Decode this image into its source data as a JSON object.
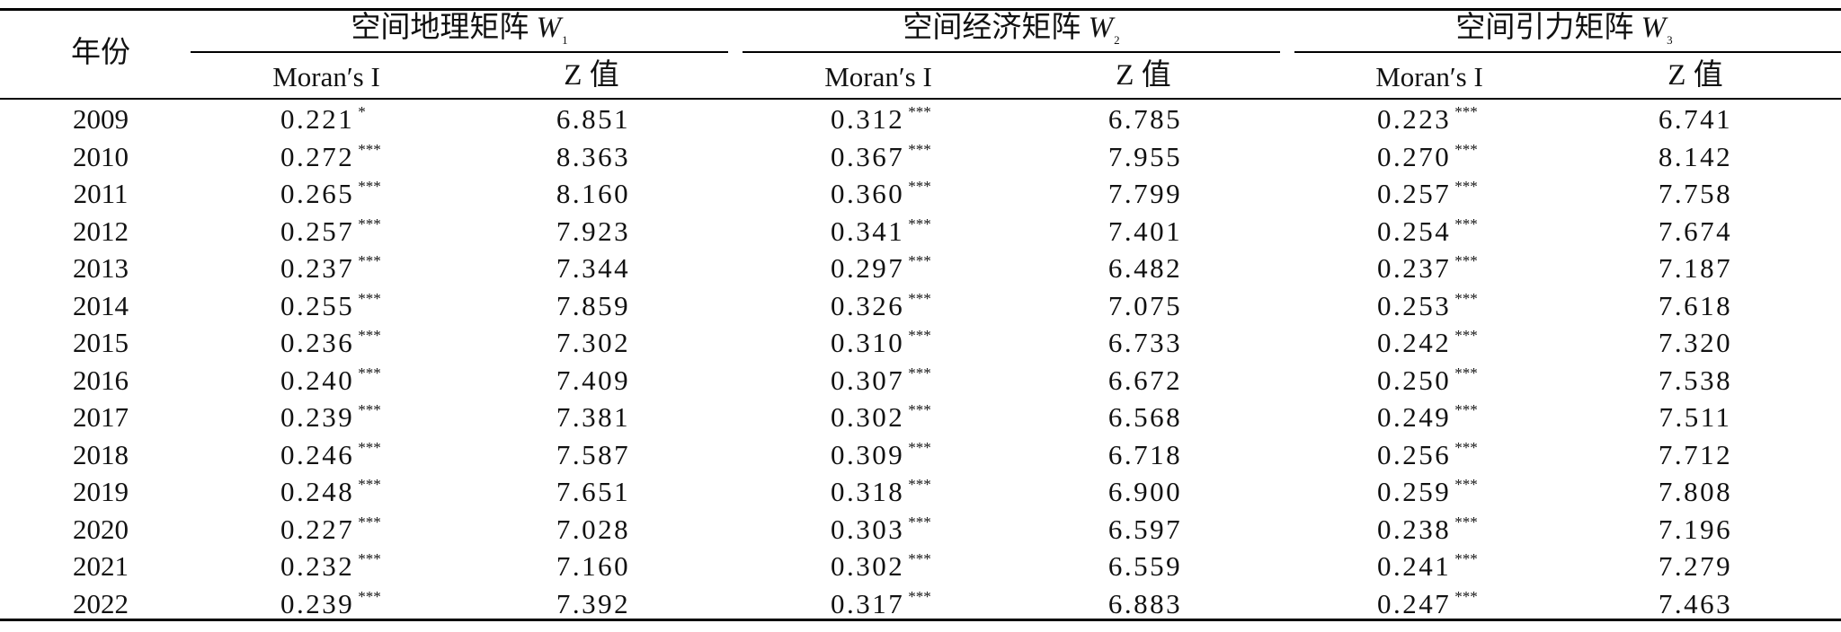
{
  "table": {
    "year_header": "年份",
    "groups": [
      {
        "title": "空间地理矩阵",
        "symbol": "W",
        "subscript": "1"
      },
      {
        "title": "空间经济矩阵",
        "symbol": "W",
        "subscript": "2"
      },
      {
        "title": "空间引力矩阵",
        "symbol": "W",
        "subscript": "3"
      }
    ],
    "subheaders": [
      "Moran′s I",
      "Z 值",
      "Moran′s I",
      "Z 值",
      "Moran′s I",
      "Z 值"
    ],
    "rows": [
      {
        "year": "2009",
        "cells": [
          [
            "0.221",
            "*"
          ],
          [
            "6.851",
            ""
          ],
          [
            "0.312",
            "***"
          ],
          [
            "6.785",
            ""
          ],
          [
            "0.223",
            "***"
          ],
          [
            "6.741",
            ""
          ]
        ]
      },
      {
        "year": "2010",
        "cells": [
          [
            "0.272",
            "***"
          ],
          [
            "8.363",
            ""
          ],
          [
            "0.367",
            "***"
          ],
          [
            "7.955",
            ""
          ],
          [
            "0.270",
            "***"
          ],
          [
            "8.142",
            ""
          ]
        ]
      },
      {
        "year": "2011",
        "cells": [
          [
            "0.265",
            "***"
          ],
          [
            "8.160",
            ""
          ],
          [
            "0.360",
            "***"
          ],
          [
            "7.799",
            ""
          ],
          [
            "0.257",
            "***"
          ],
          [
            "7.758",
            ""
          ]
        ]
      },
      {
        "year": "2012",
        "cells": [
          [
            "0.257",
            "***"
          ],
          [
            "7.923",
            ""
          ],
          [
            "0.341",
            "***"
          ],
          [
            "7.401",
            ""
          ],
          [
            "0.254",
            "***"
          ],
          [
            "7.674",
            ""
          ]
        ]
      },
      {
        "year": "2013",
        "cells": [
          [
            "0.237",
            "***"
          ],
          [
            "7.344",
            ""
          ],
          [
            "0.297",
            "***"
          ],
          [
            "6.482",
            ""
          ],
          [
            "0.237",
            "***"
          ],
          [
            "7.187",
            ""
          ]
        ]
      },
      {
        "year": "2014",
        "cells": [
          [
            "0.255",
            "***"
          ],
          [
            "7.859",
            ""
          ],
          [
            "0.326",
            "***"
          ],
          [
            "7.075",
            ""
          ],
          [
            "0.253",
            "***"
          ],
          [
            "7.618",
            ""
          ]
        ]
      },
      {
        "year": "2015",
        "cells": [
          [
            "0.236",
            "***"
          ],
          [
            "7.302",
            ""
          ],
          [
            "0.310",
            "***"
          ],
          [
            "6.733",
            ""
          ],
          [
            "0.242",
            "***"
          ],
          [
            "7.320",
            ""
          ]
        ]
      },
      {
        "year": "2016",
        "cells": [
          [
            "0.240",
            "***"
          ],
          [
            "7.409",
            ""
          ],
          [
            "0.307",
            "***"
          ],
          [
            "6.672",
            ""
          ],
          [
            "0.250",
            "***"
          ],
          [
            "7.538",
            ""
          ]
        ]
      },
      {
        "year": "2017",
        "cells": [
          [
            "0.239",
            "***"
          ],
          [
            "7.381",
            ""
          ],
          [
            "0.302",
            "***"
          ],
          [
            "6.568",
            ""
          ],
          [
            "0.249",
            "***"
          ],
          [
            "7.511",
            ""
          ]
        ]
      },
      {
        "year": "2018",
        "cells": [
          [
            "0.246",
            "***"
          ],
          [
            "7.587",
            ""
          ],
          [
            "0.309",
            "***"
          ],
          [
            "6.718",
            ""
          ],
          [
            "0.256",
            "***"
          ],
          [
            "7.712",
            ""
          ]
        ]
      },
      {
        "year": "2019",
        "cells": [
          [
            "0.248",
            "***"
          ],
          [
            "7.651",
            ""
          ],
          [
            "0.318",
            "***"
          ],
          [
            "6.900",
            ""
          ],
          [
            "0.259",
            "***"
          ],
          [
            "7.808",
            ""
          ]
        ]
      },
      {
        "year": "2020",
        "cells": [
          [
            "0.227",
            "***"
          ],
          [
            "7.028",
            ""
          ],
          [
            "0.303",
            "***"
          ],
          [
            "6.597",
            ""
          ],
          [
            "0.238",
            "***"
          ],
          [
            "7.196",
            ""
          ]
        ]
      },
      {
        "year": "2021",
        "cells": [
          [
            "0.232",
            "***"
          ],
          [
            "7.160",
            ""
          ],
          [
            "0.302",
            "***"
          ],
          [
            "6.559",
            ""
          ],
          [
            "0.241",
            "***"
          ],
          [
            "7.279",
            ""
          ]
        ]
      },
      {
        "year": "2022",
        "cells": [
          [
            "0.239",
            "***"
          ],
          [
            "7.392",
            ""
          ],
          [
            "0.317",
            "***"
          ],
          [
            "6.883",
            ""
          ],
          [
            "0.247",
            "***"
          ],
          [
            "7.463",
            ""
          ]
        ]
      }
    ]
  }
}
